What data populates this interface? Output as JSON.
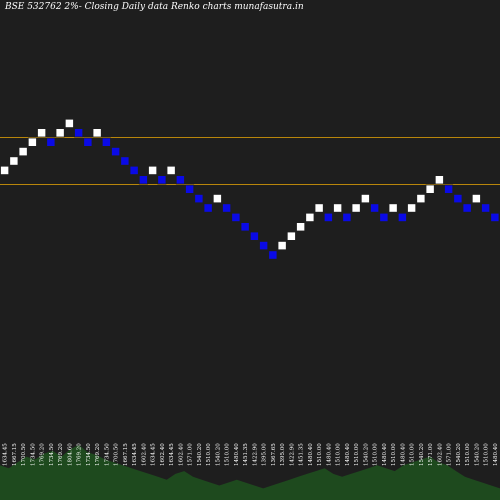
{
  "title": "BSE 532762  2%-  Closing Daily data  Renko  charts munafasutra.in",
  "colors": {
    "background": "#1e1e1e",
    "up_brick": "#ffffff",
    "down_brick": "#0a0ae6",
    "brick_outline": "#1e1e1e",
    "level_line": "#b8860b",
    "volume": "#1e4a1e",
    "label": "#ffffff"
  },
  "chart_data": {
    "type": "renko",
    "title": "BSE 532762  2%-  Closing Daily data  Renko  charts munafasutra.in",
    "horizontal_levels": [
      15,
      10
    ],
    "bricks": [
      {
        "dir": "up",
        "level": 11,
        "label": "1634.45"
      },
      {
        "dir": "up",
        "level": 12,
        "label": "1667.15"
      },
      {
        "dir": "up",
        "level": 13,
        "label": "1700.50"
      },
      {
        "dir": "up",
        "level": 14,
        "label": "1734.50"
      },
      {
        "dir": "up",
        "level": 15,
        "label": "1769.20"
      },
      {
        "dir": "down",
        "level": 14,
        "label": "1734.50"
      },
      {
        "dir": "up",
        "level": 15,
        "label": "1769.20"
      },
      {
        "dir": "up",
        "level": 16,
        "label": "1804.60"
      },
      {
        "dir": "down",
        "level": 15,
        "label": "1769.20"
      },
      {
        "dir": "down",
        "level": 14,
        "label": "1734.50"
      },
      {
        "dir": "up",
        "level": 15,
        "label": "1769.20"
      },
      {
        "dir": "down",
        "level": 14,
        "label": "1734.50"
      },
      {
        "dir": "down",
        "level": 13,
        "label": "1700.50"
      },
      {
        "dir": "down",
        "level": 12,
        "label": "1667.15"
      },
      {
        "dir": "down",
        "level": 11,
        "label": "1634.45"
      },
      {
        "dir": "down",
        "level": 10,
        "label": "1602.40"
      },
      {
        "dir": "up",
        "level": 11,
        "label": "1634.45"
      },
      {
        "dir": "down",
        "level": 10,
        "label": "1602.40"
      },
      {
        "dir": "up",
        "level": 11,
        "label": "1634.45"
      },
      {
        "dir": "down",
        "level": 10,
        "label": "1602.40"
      },
      {
        "dir": "down",
        "level": 9,
        "label": "1571.00"
      },
      {
        "dir": "down",
        "level": 8,
        "label": "1540.20"
      },
      {
        "dir": "down",
        "level": 7,
        "label": "1510.00"
      },
      {
        "dir": "up",
        "level": 8,
        "label": "1540.20"
      },
      {
        "dir": "down",
        "level": 7,
        "label": "1510.00"
      },
      {
        "dir": "down",
        "level": 6,
        "label": "1480.40"
      },
      {
        "dir": "down",
        "level": 5,
        "label": "1451.35"
      },
      {
        "dir": "down",
        "level": 4,
        "label": "1422.90"
      },
      {
        "dir": "down",
        "level": 3,
        "label": "1395.00"
      },
      {
        "dir": "down",
        "level": 2,
        "label": "1367.65"
      },
      {
        "dir": "up",
        "level": 3,
        "label": "1395.00"
      },
      {
        "dir": "up",
        "level": 4,
        "label": "1422.90"
      },
      {
        "dir": "up",
        "level": 5,
        "label": "1451.35"
      },
      {
        "dir": "up",
        "level": 6,
        "label": "1480.40"
      },
      {
        "dir": "up",
        "level": 7,
        "label": "1510.00"
      },
      {
        "dir": "down",
        "level": 6,
        "label": "1480.40"
      },
      {
        "dir": "up",
        "level": 7,
        "label": "1510.00"
      },
      {
        "dir": "down",
        "level": 6,
        "label": "1480.40"
      },
      {
        "dir": "up",
        "level": 7,
        "label": "1510.00"
      },
      {
        "dir": "up",
        "level": 8,
        "label": "1540.20"
      },
      {
        "dir": "down",
        "level": 7,
        "label": "1510.00"
      },
      {
        "dir": "down",
        "level": 6,
        "label": "1480.40"
      },
      {
        "dir": "up",
        "level": 7,
        "label": "1510.00"
      },
      {
        "dir": "down",
        "level": 6,
        "label": "1480.40"
      },
      {
        "dir": "up",
        "level": 7,
        "label": "1510.00"
      },
      {
        "dir": "up",
        "level": 8,
        "label": "1540.20"
      },
      {
        "dir": "up",
        "level": 9,
        "label": "1571.00"
      },
      {
        "dir": "up",
        "level": 10,
        "label": "1602.40"
      },
      {
        "dir": "down",
        "level": 9,
        "label": "1571.00"
      },
      {
        "dir": "down",
        "level": 8,
        "label": "1540.20"
      },
      {
        "dir": "down",
        "level": 7,
        "label": "1510.00"
      },
      {
        "dir": "up",
        "level": 8,
        "label": "1540.20"
      },
      {
        "dir": "down",
        "level": 7,
        "label": "1510.00"
      },
      {
        "dir": "down",
        "level": 6,
        "label": "1480.40"
      }
    ],
    "volume": [
      24,
      22,
      26,
      30,
      28,
      32,
      34,
      30,
      35,
      38,
      33,
      31,
      28,
      26,
      24,
      22,
      20,
      18,
      16,
      14,
      18,
      20,
      16,
      14,
      12,
      10,
      12,
      14,
      12,
      10,
      8,
      10,
      12,
      14,
      16,
      18,
      20,
      22,
      18,
      16,
      18,
      20,
      22,
      24,
      22,
      20,
      24,
      26,
      28,
      30,
      26,
      24,
      20,
      16,
      14,
      12,
      10,
      8
    ]
  }
}
